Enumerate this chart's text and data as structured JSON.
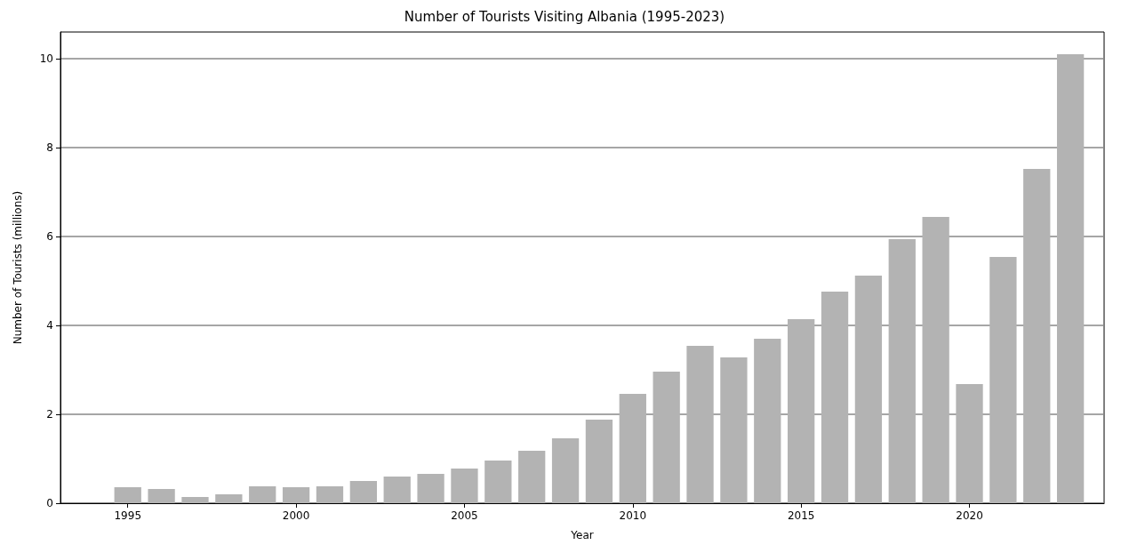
{
  "chart_data": {
    "type": "bar",
    "title": "Number of Tourists Visiting Albania (1995-2023)",
    "xlabel": "Year",
    "ylabel": "Number of Tourists (millions)",
    "x": [
      1995,
      1996,
      1997,
      1998,
      1999,
      2000,
      2001,
      2002,
      2003,
      2004,
      2005,
      2006,
      2007,
      2008,
      2009,
      2010,
      2011,
      2012,
      2013,
      2014,
      2015,
      2016,
      2017,
      2018,
      2019,
      2020,
      2021,
      2022,
      2023
    ],
    "values": [
      0.36,
      0.32,
      0.14,
      0.2,
      0.38,
      0.36,
      0.38,
      0.5,
      0.6,
      0.66,
      0.78,
      0.96,
      1.18,
      1.46,
      1.88,
      2.46,
      2.96,
      3.54,
      3.28,
      3.7,
      4.14,
      4.76,
      5.12,
      5.94,
      6.44,
      2.68,
      5.54,
      7.52,
      10.1
    ],
    "color": "#b3b3b3",
    "xlim": [
      1993,
      2024
    ],
    "xticks": [
      1995,
      2000,
      2005,
      2010,
      2015,
      2020
    ],
    "ylim": [
      0,
      10.6
    ],
    "yticks": [
      0,
      2,
      4,
      6,
      8,
      10
    ],
    "grid": "y"
  }
}
